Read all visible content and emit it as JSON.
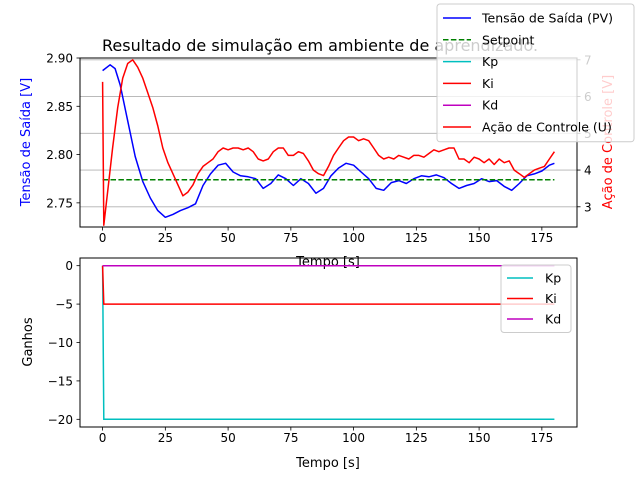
{
  "chart_data": [
    {
      "type": "line",
      "title": "Resultado de simulação em ambiente de aprendizado.",
      "xlabel": "Tempo [s]",
      "ylabel": "Tensão de Saída [V]",
      "ylabel_right": "Ação de Controle [V]",
      "xlim": [
        -9,
        189
      ],
      "ylim": [
        2.725,
        2.9
      ],
      "ylim_right": [
        2.45,
        7.05
      ],
      "xticks": [
        0,
        25,
        50,
        75,
        100,
        125,
        150,
        175
      ],
      "yticks": [
        2.75,
        2.8,
        2.85,
        2.9
      ],
      "yticks_right": [
        3,
        4,
        5,
        6,
        7
      ],
      "grid": "right-axis horizontal",
      "legend_position": "top-right",
      "colors": {
        "pv": "#0000ff",
        "setpoint": "#008000",
        "kp": "#00bfbf",
        "ki": "#ff0000",
        "kd": "#bf00bf",
        "u": "#ff0000",
        "left_axis_label": "#0000ff",
        "right_axis_label": "#ff0000"
      },
      "series": [
        {
          "name": "Tensão de Saída (PV)",
          "axis": "left",
          "color": "#0000ff",
          "style": "solid",
          "x": [
            0,
            3,
            5,
            7,
            10,
            13,
            16,
            19,
            22,
            25,
            28,
            31,
            34,
            37,
            40,
            43,
            46,
            49,
            52,
            55,
            58,
            61,
            64,
            67,
            70,
            73,
            76,
            79,
            82,
            85,
            88,
            91,
            94,
            97,
            100,
            103,
            106,
            109,
            112,
            115,
            118,
            121,
            124,
            127,
            130,
            133,
            136,
            139,
            142,
            145,
            148,
            151,
            154,
            157,
            160,
            163,
            166,
            169,
            172,
            175,
            178,
            180
          ],
          "y": [
            2.887,
            2.893,
            2.889,
            2.872,
            2.835,
            2.798,
            2.772,
            2.755,
            2.742,
            2.735,
            2.738,
            2.742,
            2.745,
            2.749,
            2.768,
            2.78,
            2.789,
            2.791,
            2.782,
            2.778,
            2.777,
            2.775,
            2.765,
            2.77,
            2.779,
            2.775,
            2.768,
            2.775,
            2.77,
            2.76,
            2.765,
            2.778,
            2.786,
            2.791,
            2.789,
            2.782,
            2.775,
            2.765,
            2.763,
            2.771,
            2.773,
            2.77,
            2.775,
            2.778,
            2.777,
            2.779,
            2.776,
            2.77,
            2.765,
            2.768,
            2.77,
            2.775,
            2.772,
            2.773,
            2.767,
            2.763,
            2.77,
            2.778,
            2.78,
            2.783,
            2.789,
            2.791
          ]
        },
        {
          "name": "Setpoint",
          "axis": "left",
          "color": "#008000",
          "style": "dashed",
          "x": [
            0,
            180
          ],
          "y": [
            2.774,
            2.774
          ]
        },
        {
          "name": "Kp",
          "axis": "right",
          "color": "#00bfbf",
          "style": "solid",
          "x": [],
          "y": []
        },
        {
          "name": "Ki",
          "axis": "right",
          "color": "#ff0000",
          "style": "solid",
          "x": [],
          "y": []
        },
        {
          "name": "Kd",
          "axis": "right",
          "color": "#bf00bf",
          "style": "solid",
          "x": [],
          "y": []
        },
        {
          "name": "Ação de Controle (U)",
          "axis": "right",
          "color": "#ff0000",
          "style": "solid",
          "x": [
            0,
            0.5,
            2,
            4,
            6,
            8,
            10,
            12,
            14,
            16,
            18,
            20,
            22,
            24,
            26,
            28,
            30,
            32,
            34,
            36,
            38,
            40,
            42,
            44,
            46,
            48,
            50,
            52,
            54,
            56,
            58,
            60,
            62,
            64,
            66,
            68,
            70,
            72,
            74,
            76,
            78,
            80,
            82,
            84,
            86,
            88,
            90,
            92,
            94,
            96,
            98,
            100,
            102,
            104,
            106,
            108,
            110,
            112,
            114,
            116,
            118,
            120,
            122,
            124,
            126,
            128,
            130,
            132,
            134,
            136,
            138,
            140,
            142,
            144,
            146,
            148,
            150,
            152,
            154,
            156,
            158,
            160,
            162,
            164,
            166,
            168,
            170,
            172,
            174,
            176,
            178,
            180
          ],
          "y": [
            6.4,
            2.5,
            3.4,
            4.6,
            5.7,
            6.5,
            6.9,
            7.0,
            6.8,
            6.5,
            6.1,
            5.7,
            5.2,
            4.6,
            4.2,
            3.9,
            3.6,
            3.3,
            3.4,
            3.6,
            3.9,
            4.1,
            4.2,
            4.3,
            4.5,
            4.6,
            4.55,
            4.6,
            4.6,
            4.55,
            4.6,
            4.5,
            4.3,
            4.25,
            4.3,
            4.5,
            4.6,
            4.6,
            4.4,
            4.4,
            4.5,
            4.45,
            4.25,
            4.0,
            3.9,
            3.85,
            4.1,
            4.4,
            4.6,
            4.8,
            4.9,
            4.9,
            4.8,
            4.85,
            4.8,
            4.6,
            4.4,
            4.3,
            4.35,
            4.3,
            4.4,
            4.35,
            4.3,
            4.4,
            4.4,
            4.35,
            4.45,
            4.55,
            4.5,
            4.55,
            4.6,
            4.6,
            4.3,
            4.3,
            4.2,
            4.35,
            4.3,
            4.2,
            4.3,
            4.15,
            4.3,
            4.2,
            4.25,
            4.0,
            3.9,
            3.8,
            3.9,
            4.0,
            4.05,
            4.1,
            4.3,
            4.5
          ]
        }
      ]
    },
    {
      "type": "line",
      "title": "",
      "xlabel": "Tempo [s]",
      "ylabel": "Ganhos",
      "xlim": [
        -9,
        189
      ],
      "ylim": [
        -21,
        1
      ],
      "xticks": [
        0,
        25,
        50,
        75,
        100,
        125,
        150,
        175
      ],
      "yticks": [
        0,
        -5,
        -10,
        -15,
        -20
      ],
      "grid": "off",
      "legend_position": "top-right",
      "series": [
        {
          "name": "Kp",
          "color": "#00bfbf",
          "x": [
            0,
            0.5,
            180
          ],
          "y": [
            0,
            -20,
            -20
          ]
        },
        {
          "name": "Ki",
          "color": "#ff0000",
          "x": [
            0,
            0.5,
            180
          ],
          "y": [
            0,
            -5,
            -5
          ]
        },
        {
          "name": "Kd",
          "color": "#bf00bf",
          "x": [
            0,
            180
          ],
          "y": [
            0,
            0
          ]
        }
      ]
    }
  ]
}
